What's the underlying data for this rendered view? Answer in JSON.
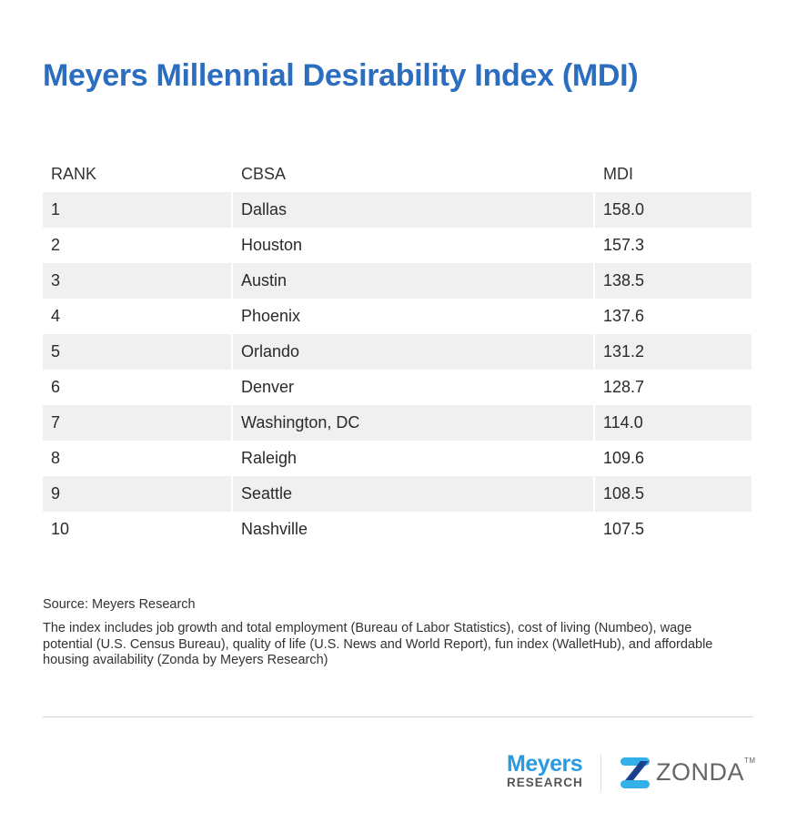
{
  "title": "Meyers Millennial Desirability Index (MDI)",
  "table": {
    "headers": [
      "RANK",
      "CBSA",
      "MDI"
    ],
    "rows": [
      [
        "1",
        "Dallas",
        "158.0"
      ],
      [
        "2",
        "Houston",
        "157.3"
      ],
      [
        "3",
        "Austin",
        "138.5"
      ],
      [
        "4",
        "Phoenix",
        "137.6"
      ],
      [
        "5",
        "Orlando",
        "131.2"
      ],
      [
        "6",
        "Denver",
        "128.7"
      ],
      [
        "7",
        "Washington, DC",
        "114.0"
      ],
      [
        "8",
        "Raleigh",
        "109.6"
      ],
      [
        "9",
        "Seattle",
        "108.5"
      ],
      [
        "10",
        "Nashville",
        "107.5"
      ]
    ]
  },
  "source": "Source: Meyers Research",
  "note": "The index includes job growth and total employment (Bureau of Labor Statistics), cost of living (Numbeo), wage potential (U.S. Census Bureau), quality of life (U.S. News and World Report), fun index (WalletHub), and affordable housing availability (Zonda by Meyers Research)",
  "logos": {
    "meyers_line1": "Meyers",
    "meyers_line2": "RESEARCH",
    "zonda": "ZONDA",
    "zonda_tm": "TM"
  },
  "colors": {
    "title": "#2b6dbf",
    "stripe": "#f0f0f0",
    "meyers_blue": "#2a9ae0",
    "zonda_dark": "#1f4fa0",
    "zonda_light": "#33b0ea"
  }
}
